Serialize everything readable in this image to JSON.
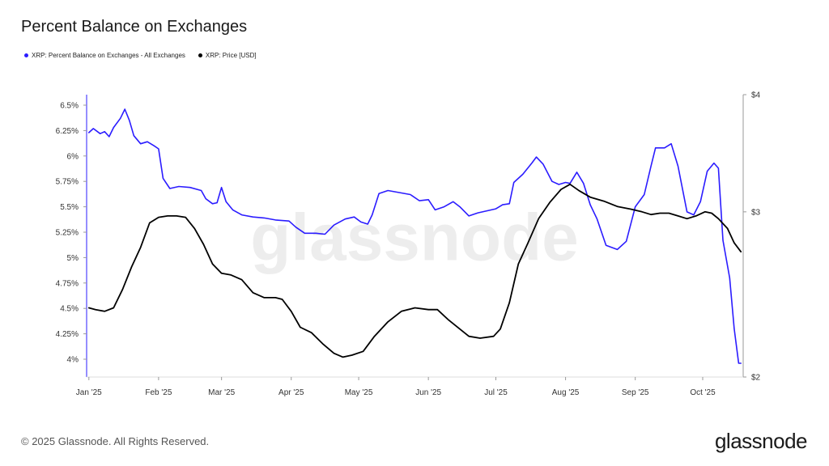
{
  "header": {
    "title": "Percent Balance on Exchanges"
  },
  "footer": {
    "copyright": "© 2025 Glassnode. All Rights Reserved.",
    "logo": "glassnode"
  },
  "watermark": "glassnode",
  "chart_data": {
    "type": "line",
    "title": "Percent Balance on Exchanges",
    "legend_position": "top-left",
    "grid": false,
    "x_tick_labels": [
      "Jan '25",
      "Feb '25",
      "Mar '25",
      "Apr '25",
      "May '25",
      "Jun '25",
      "Jul '25",
      "Aug '25",
      "Sep '25",
      "Oct '25"
    ],
    "x_tick_dates": [
      "2025-01-01",
      "2025-02-01",
      "2025-03-01",
      "2025-04-01",
      "2025-05-01",
      "2025-06-01",
      "2025-07-01",
      "2025-08-01",
      "2025-09-01",
      "2025-10-01"
    ],
    "xlim": [
      "2024-12-31",
      "2025-10-19"
    ],
    "y_left": {
      "ylim": [
        3.84,
        6.55
      ],
      "ticks": [
        4.0,
        4.25,
        4.5,
        4.75,
        5.0,
        5.25,
        5.5,
        5.75,
        6.0,
        6.25,
        6.5
      ],
      "tick_labels": [
        "4%",
        "4.25%",
        "4.5%",
        "4.75%",
        "5%",
        "5.25%",
        "5.5%",
        "5.75%",
        "6%",
        "6.25%",
        "6.5%"
      ]
    },
    "y_right": {
      "scale": "log",
      "ylim": [
        2,
        4
      ],
      "ticks": [
        2,
        3,
        4
      ],
      "tick_labels": [
        "$2",
        "$3",
        "$4"
      ]
    },
    "series": [
      {
        "name": "XRP: Percent Balance on Exchanges - All Exchanges",
        "color": "#2b1cff",
        "axis": "left",
        "points": [
          [
            "2025-01-01",
            6.23
          ],
          [
            "2025-01-03",
            6.27
          ],
          [
            "2025-01-06",
            6.22
          ],
          [
            "2025-01-08",
            6.24
          ],
          [
            "2025-01-10",
            6.19
          ],
          [
            "2025-01-12",
            6.28
          ],
          [
            "2025-01-15",
            6.37
          ],
          [
            "2025-01-17",
            6.46
          ],
          [
            "2025-01-19",
            6.35
          ],
          [
            "2025-01-21",
            6.2
          ],
          [
            "2025-01-24",
            6.12
          ],
          [
            "2025-01-27",
            6.14
          ],
          [
            "2025-01-30",
            6.1
          ],
          [
            "2025-02-01",
            6.07
          ],
          [
            "2025-02-03",
            5.78
          ],
          [
            "2025-02-06",
            5.68
          ],
          [
            "2025-02-10",
            5.7
          ],
          [
            "2025-02-15",
            5.69
          ],
          [
            "2025-02-20",
            5.66
          ],
          [
            "2025-02-22",
            5.58
          ],
          [
            "2025-02-25",
            5.53
          ],
          [
            "2025-02-27",
            5.54
          ],
          [
            "2025-03-01",
            5.69
          ],
          [
            "2025-03-03",
            5.55
          ],
          [
            "2025-03-06",
            5.47
          ],
          [
            "2025-03-10",
            5.42
          ],
          [
            "2025-03-15",
            5.4
          ],
          [
            "2025-03-20",
            5.39
          ],
          [
            "2025-03-25",
            5.37
          ],
          [
            "2025-03-31",
            5.36
          ],
          [
            "2025-04-03",
            5.3
          ],
          [
            "2025-04-07",
            5.24
          ],
          [
            "2025-04-12",
            5.24
          ],
          [
            "2025-04-16",
            5.23
          ],
          [
            "2025-04-20",
            5.32
          ],
          [
            "2025-04-25",
            5.38
          ],
          [
            "2025-04-29",
            5.4
          ],
          [
            "2025-05-02",
            5.35
          ],
          [
            "2025-05-05",
            5.33
          ],
          [
            "2025-05-07",
            5.42
          ],
          [
            "2025-05-10",
            5.63
          ],
          [
            "2025-05-14",
            5.66
          ],
          [
            "2025-05-19",
            5.64
          ],
          [
            "2025-05-24",
            5.62
          ],
          [
            "2025-05-28",
            5.56
          ],
          [
            "2025-06-01",
            5.57
          ],
          [
            "2025-06-04",
            5.47
          ],
          [
            "2025-06-08",
            5.5
          ],
          [
            "2025-06-12",
            5.55
          ],
          [
            "2025-06-15",
            5.5
          ],
          [
            "2025-06-19",
            5.41
          ],
          [
            "2025-06-23",
            5.44
          ],
          [
            "2025-06-27",
            5.46
          ],
          [
            "2025-07-01",
            5.48
          ],
          [
            "2025-07-04",
            5.52
          ],
          [
            "2025-07-07",
            5.53
          ],
          [
            "2025-07-09",
            5.74
          ],
          [
            "2025-07-13",
            5.82
          ],
          [
            "2025-07-17",
            5.93
          ],
          [
            "2025-07-19",
            5.99
          ],
          [
            "2025-07-22",
            5.92
          ],
          [
            "2025-07-26",
            5.75
          ],
          [
            "2025-07-29",
            5.72
          ],
          [
            "2025-08-01",
            5.74
          ],
          [
            "2025-08-03",
            5.73
          ],
          [
            "2025-08-06",
            5.84
          ],
          [
            "2025-08-09",
            5.73
          ],
          [
            "2025-08-12",
            5.52
          ],
          [
            "2025-08-15",
            5.38
          ],
          [
            "2025-08-19",
            5.12
          ],
          [
            "2025-08-24",
            5.08
          ],
          [
            "2025-08-28",
            5.16
          ],
          [
            "2025-09-01",
            5.5
          ],
          [
            "2025-09-05",
            5.62
          ],
          [
            "2025-09-08",
            5.9
          ],
          [
            "2025-09-10",
            6.08
          ],
          [
            "2025-09-14",
            6.08
          ],
          [
            "2025-09-17",
            6.12
          ],
          [
            "2025-09-20",
            5.9
          ],
          [
            "2025-09-24",
            5.45
          ],
          [
            "2025-09-27",
            5.42
          ],
          [
            "2025-09-30",
            5.55
          ],
          [
            "2025-10-03",
            5.85
          ],
          [
            "2025-10-06",
            5.93
          ],
          [
            "2025-10-08",
            5.88
          ],
          [
            "2025-10-10",
            5.17
          ],
          [
            "2025-10-13",
            4.8
          ],
          [
            "2025-10-15",
            4.3
          ],
          [
            "2025-10-17",
            3.96
          ],
          [
            "2025-10-18",
            3.96
          ]
        ]
      },
      {
        "name": "XRP: Price [USD]",
        "color": "#000000",
        "axis": "right",
        "points": [
          [
            "2025-01-01",
            2.37
          ],
          [
            "2025-01-04",
            2.36
          ],
          [
            "2025-01-08",
            2.35
          ],
          [
            "2025-01-12",
            2.37
          ],
          [
            "2025-01-16",
            2.48
          ],
          [
            "2025-01-20",
            2.62
          ],
          [
            "2025-01-24",
            2.75
          ],
          [
            "2025-01-28",
            2.92
          ],
          [
            "2025-02-01",
            2.96
          ],
          [
            "2025-02-05",
            2.97
          ],
          [
            "2025-02-09",
            2.97
          ],
          [
            "2025-02-13",
            2.96
          ],
          [
            "2025-02-17",
            2.88
          ],
          [
            "2025-02-21",
            2.77
          ],
          [
            "2025-02-25",
            2.64
          ],
          [
            "2025-03-01",
            2.58
          ],
          [
            "2025-03-05",
            2.57
          ],
          [
            "2025-03-10",
            2.54
          ],
          [
            "2025-03-15",
            2.46
          ],
          [
            "2025-03-20",
            2.43
          ],
          [
            "2025-03-25",
            2.43
          ],
          [
            "2025-03-28",
            2.42
          ],
          [
            "2025-04-01",
            2.35
          ],
          [
            "2025-04-05",
            2.26
          ],
          [
            "2025-04-10",
            2.23
          ],
          [
            "2025-04-15",
            2.17
          ],
          [
            "2025-04-20",
            2.12
          ],
          [
            "2025-04-24",
            2.1
          ],
          [
            "2025-04-28",
            2.11
          ],
          [
            "2025-05-03",
            2.13
          ],
          [
            "2025-05-08",
            2.21
          ],
          [
            "2025-05-14",
            2.29
          ],
          [
            "2025-05-20",
            2.35
          ],
          [
            "2025-05-26",
            2.37
          ],
          [
            "2025-06-01",
            2.36
          ],
          [
            "2025-06-05",
            2.36
          ],
          [
            "2025-06-10",
            2.3
          ],
          [
            "2025-06-15",
            2.25
          ],
          [
            "2025-06-19",
            2.21
          ],
          [
            "2025-06-24",
            2.2
          ],
          [
            "2025-06-30",
            2.21
          ],
          [
            "2025-07-03",
            2.25
          ],
          [
            "2025-07-07",
            2.4
          ],
          [
            "2025-07-11",
            2.64
          ],
          [
            "2025-07-15",
            2.77
          ],
          [
            "2025-07-20",
            2.95
          ],
          [
            "2025-07-25",
            3.07
          ],
          [
            "2025-07-30",
            3.17
          ],
          [
            "2025-08-03",
            3.21
          ],
          [
            "2025-08-07",
            3.16
          ],
          [
            "2025-08-12",
            3.11
          ],
          [
            "2025-08-18",
            3.08
          ],
          [
            "2025-08-24",
            3.04
          ],
          [
            "2025-08-30",
            3.02
          ],
          [
            "2025-09-04",
            3.0
          ],
          [
            "2025-09-08",
            2.98
          ],
          [
            "2025-09-12",
            2.99
          ],
          [
            "2025-09-16",
            2.99
          ],
          [
            "2025-09-20",
            2.97
          ],
          [
            "2025-09-24",
            2.95
          ],
          [
            "2025-09-28",
            2.97
          ],
          [
            "2025-10-02",
            3.0
          ],
          [
            "2025-10-05",
            2.99
          ],
          [
            "2025-10-08",
            2.95
          ],
          [
            "2025-10-12",
            2.88
          ],
          [
            "2025-10-15",
            2.78
          ],
          [
            "2025-10-18",
            2.72
          ]
        ]
      }
    ]
  }
}
